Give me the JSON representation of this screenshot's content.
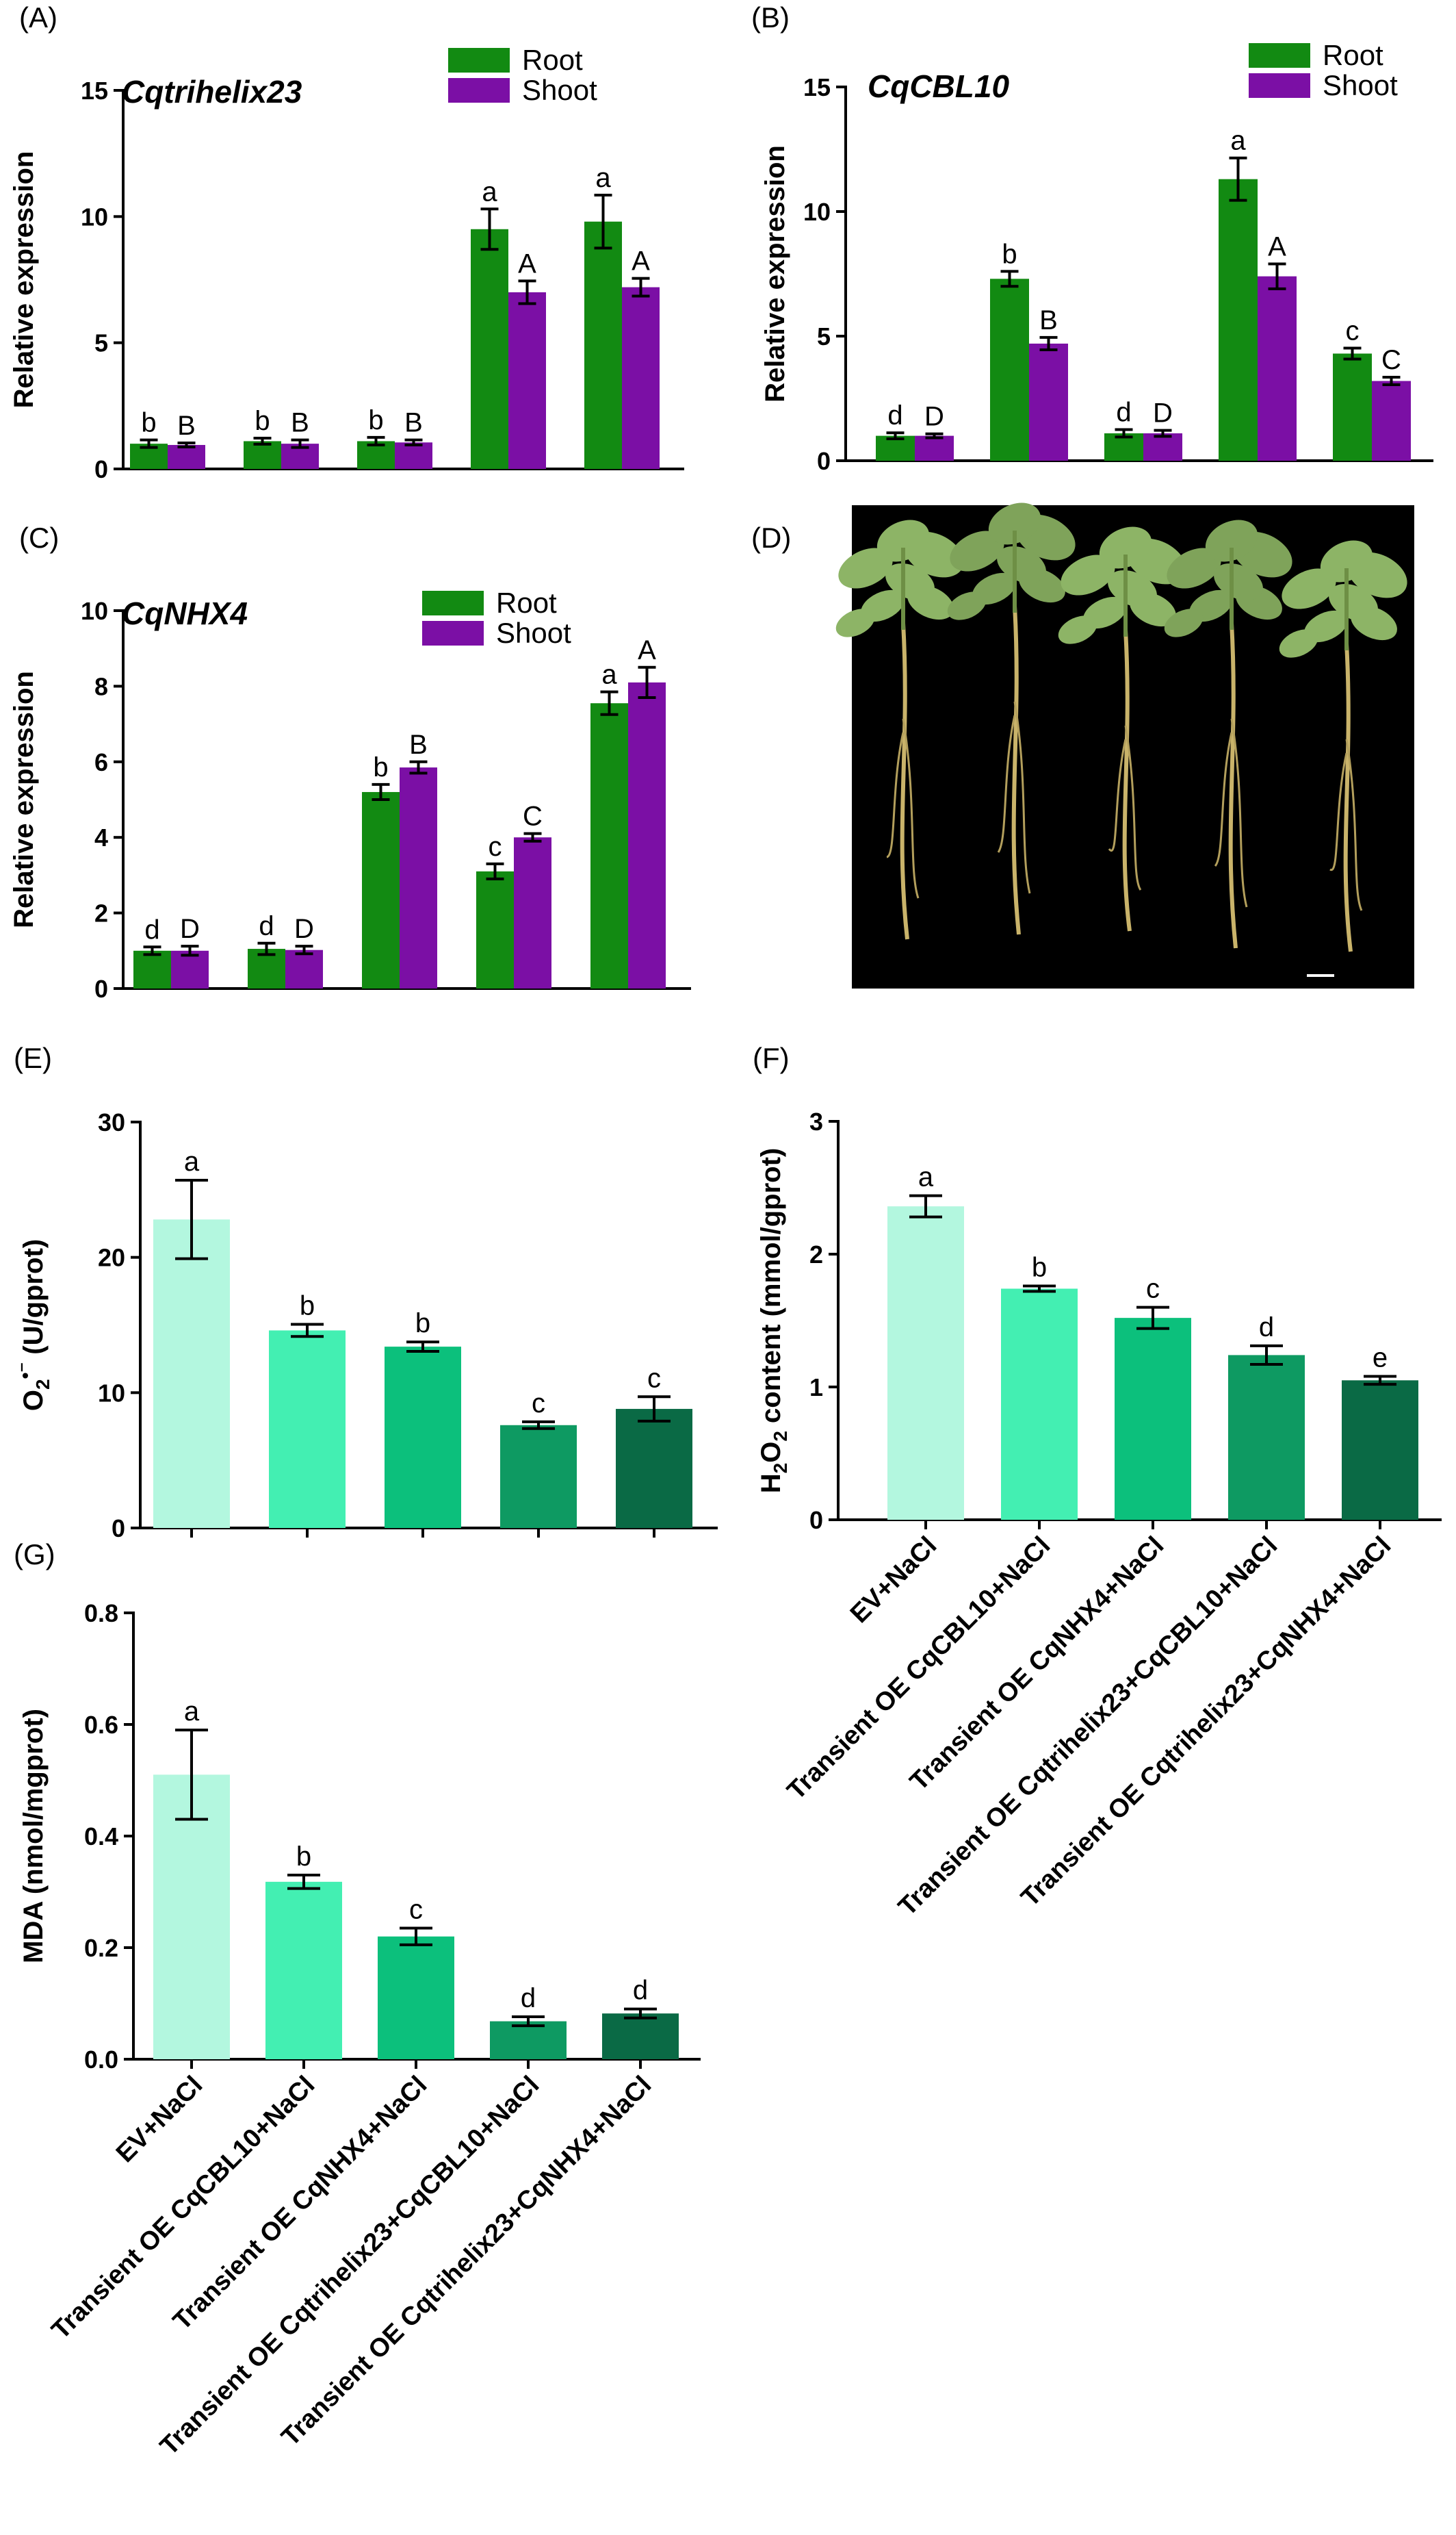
{
  "panels": [
    {
      "id": "A",
      "label": "(A)",
      "title": "Cqtrihelix23",
      "type": "grouped-bar",
      "ylabel": "Relative expression",
      "ylim": [
        0,
        15
      ],
      "yticks": [
        0,
        5,
        10,
        15
      ],
      "legend": [
        "Root",
        "Shoot"
      ],
      "groups": [
        {
          "root": 1.0,
          "root_err": 0.15,
          "root_sig": "b",
          "shoot": 0.95,
          "shoot_err": 0.08,
          "shoot_sig": "B"
        },
        {
          "root": 1.1,
          "root_err": 0.12,
          "root_sig": "b",
          "shoot": 1.0,
          "shoot_err": 0.15,
          "shoot_sig": "B"
        },
        {
          "root": 1.1,
          "root_err": 0.15,
          "root_sig": "b",
          "shoot": 1.05,
          "shoot_err": 0.1,
          "shoot_sig": "B"
        },
        {
          "root": 9.5,
          "root_err": 0.8,
          "root_sig": "a",
          "shoot": 7.0,
          "shoot_err": 0.45,
          "shoot_sig": "A"
        },
        {
          "root": 9.8,
          "root_err": 1.05,
          "root_sig": "a",
          "shoot": 7.2,
          "shoot_err": 0.35,
          "shoot_sig": "A"
        }
      ]
    },
    {
      "id": "B",
      "label": "(B)",
      "title": "CqCBL10",
      "type": "grouped-bar",
      "ylabel": "Relative expression",
      "ylim": [
        0,
        15
      ],
      "yticks": [
        0,
        5,
        10,
        15
      ],
      "legend": [
        "Root",
        "Shoot"
      ],
      "groups": [
        {
          "root": 1.0,
          "root_err": 0.12,
          "root_sig": "d",
          "shoot": 1.0,
          "shoot_err": 0.08,
          "shoot_sig": "D"
        },
        {
          "root": 7.3,
          "root_err": 0.3,
          "root_sig": "b",
          "shoot": 4.7,
          "shoot_err": 0.25,
          "shoot_sig": "B"
        },
        {
          "root": 1.1,
          "root_err": 0.15,
          "root_sig": "d",
          "shoot": 1.1,
          "shoot_err": 0.12,
          "shoot_sig": "D"
        },
        {
          "root": 11.3,
          "root_err": 0.85,
          "root_sig": "a",
          "shoot": 7.4,
          "shoot_err": 0.5,
          "shoot_sig": "A"
        },
        {
          "root": 4.3,
          "root_err": 0.22,
          "root_sig": "c",
          "shoot": 3.2,
          "shoot_err": 0.15,
          "shoot_sig": "C"
        }
      ]
    },
    {
      "id": "C",
      "label": "(C)",
      "title": "CqNHX4",
      "type": "grouped-bar",
      "ylabel": "Relative expression",
      "ylim": [
        0,
        10
      ],
      "yticks": [
        0,
        2,
        4,
        6,
        8,
        10
      ],
      "legend": [
        "Root",
        "Shoot"
      ],
      "groups": [
        {
          "root": 1.0,
          "root_err": 0.1,
          "root_sig": "d",
          "shoot": 1.0,
          "shoot_err": 0.12,
          "shoot_sig": "D"
        },
        {
          "root": 1.05,
          "root_err": 0.15,
          "root_sig": "d",
          "shoot": 1.02,
          "shoot_err": 0.1,
          "shoot_sig": "D"
        },
        {
          "root": 5.2,
          "root_err": 0.2,
          "root_sig": "b",
          "shoot": 5.85,
          "shoot_err": 0.15,
          "shoot_sig": "B"
        },
        {
          "root": 3.1,
          "root_err": 0.2,
          "root_sig": "c",
          "shoot": 4.0,
          "shoot_err": 0.1,
          "shoot_sig": "C"
        },
        {
          "root": 7.55,
          "root_err": 0.3,
          "root_sig": "a",
          "shoot": 8.1,
          "shoot_err": 0.4,
          "shoot_sig": "A"
        }
      ]
    },
    {
      "id": "D",
      "label": "(D)",
      "type": "photo"
    },
    {
      "id": "E",
      "label": "(E)",
      "type": "bar",
      "ylabel_main": "O",
      "ylabel_sub": "2",
      "ylabel_sup": "•⁻",
      "ylabel_rest": " (U/gprot)",
      "ylim": [
        0,
        30
      ],
      "yticks": [
        0,
        10,
        20,
        30
      ],
      "values": [
        22.8,
        14.6,
        13.4,
        7.6,
        8.8
      ],
      "errors": [
        2.9,
        0.45,
        0.35,
        0.25,
        0.9
      ],
      "sig": [
        "a",
        "b",
        "b",
        "c",
        "c"
      ]
    },
    {
      "id": "F",
      "label": "(F)",
      "type": "bar",
      "ylabel_pre": "H",
      "ylabel_sub1": "2",
      "ylabel_mid": "O",
      "ylabel_sub2": "2",
      "ylabel_rest": " content (mmol/gprot)",
      "ylim": [
        0,
        3
      ],
      "yticks": [
        0,
        1,
        2,
        3
      ],
      "values": [
        2.36,
        1.74,
        1.52,
        1.24,
        1.05
      ],
      "errors": [
        0.08,
        0.02,
        0.08,
        0.07,
        0.03
      ],
      "sig": [
        "a",
        "b",
        "c",
        "d",
        "e"
      ]
    },
    {
      "id": "G",
      "label": "(G)",
      "type": "bar",
      "ylabel": "MDA (nmol/mgprot)",
      "ylim": [
        0,
        0.8
      ],
      "yticks": [
        "0.0",
        "0.2",
        "0.4",
        "0.6",
        "0.8"
      ],
      "values": [
        0.51,
        0.318,
        0.22,
        0.068,
        0.082
      ],
      "errors": [
        0.08,
        0.012,
        0.015,
        0.008,
        0.008
      ],
      "sig": [
        "a",
        "b",
        "c",
        "d",
        "d"
      ]
    }
  ],
  "chart_data": [
    {
      "type": "bar",
      "panel": "A",
      "title": "Cqtrihelix23",
      "ylabel": "Relative expression",
      "ylim": [
        0,
        15
      ],
      "series": [
        {
          "name": "Root",
          "values": [
            1.0,
            1.1,
            1.1,
            9.5,
            9.8
          ]
        },
        {
          "name": "Shoot",
          "values": [
            0.95,
            1.0,
            1.05,
            7.0,
            7.2
          ]
        }
      ],
      "legend": "top-right"
    },
    {
      "type": "bar",
      "panel": "B",
      "title": "CqCBL10",
      "ylabel": "Relative expression",
      "ylim": [
        0,
        15
      ],
      "series": [
        {
          "name": "Root",
          "values": [
            1.0,
            7.3,
            1.1,
            11.3,
            4.3
          ]
        },
        {
          "name": "Shoot",
          "values": [
            1.0,
            4.7,
            1.1,
            7.4,
            3.2
          ]
        }
      ],
      "legend": "top-right"
    },
    {
      "type": "bar",
      "panel": "C",
      "title": "CqNHX4",
      "ylabel": "Relative expression",
      "ylim": [
        0,
        10
      ],
      "series": [
        {
          "name": "Root",
          "values": [
            1.0,
            1.05,
            5.2,
            3.1,
            7.55
          ]
        },
        {
          "name": "Shoot",
          "values": [
            1.0,
            1.02,
            5.85,
            4.0,
            8.1
          ]
        }
      ],
      "legend": "top-right"
    },
    {
      "type": "bar",
      "panel": "E",
      "ylabel": "O2•⁻ (U/gprot)",
      "ylim": [
        0,
        30
      ],
      "values": [
        22.8,
        14.6,
        13.4,
        7.6,
        8.8
      ]
    },
    {
      "type": "bar",
      "panel": "F",
      "ylabel": "H2O2 content (mmol/gprot)",
      "ylim": [
        0,
        3
      ],
      "values": [
        2.36,
        1.74,
        1.52,
        1.24,
        1.05
      ],
      "categories": [
        "EV+NaCl",
        "Transient OE CqCBL10+NaCl",
        "Transient OE CqNHX4+NaCl",
        "Transient OE Cqtrihelix23+CqCBL10+NaCl",
        "Transient OE Cqtrihelix23+CqNHX4+NaCl"
      ]
    },
    {
      "type": "bar",
      "panel": "G",
      "ylabel": "MDA (nmol/mgprot)",
      "ylim": [
        0,
        0.8
      ],
      "values": [
        0.51,
        0.318,
        0.22,
        0.068,
        0.082
      ],
      "categories": [
        "EV+NaCl",
        "Transient OE CqCBL10+NaCl",
        "Transient OE CqNHX4+NaCl",
        "Transient OE Cqtrihelix23+CqCBL10+NaCl",
        "Transient OE Cqtrihelix23+CqNHX4+NaCl"
      ]
    }
  ],
  "categories": [
    "EV+NaCl",
    "Transient OE CqCBL10+NaCl",
    "Transient OE CqNHX4+NaCl",
    "Transient OE Cqtrihelix23+CqCBL10+NaCl",
    "Transient OE Cqtrihelix23+CqNHX4+NaCl"
  ],
  "colors": {
    "root": "#128a12",
    "shoot": "#7b0fa5",
    "bars_efg": [
      "#b3f7df",
      "#43efb2",
      "#0cc07c",
      "#0e9a62",
      "#0a6a45"
    ],
    "photo_bg": "#000000"
  }
}
